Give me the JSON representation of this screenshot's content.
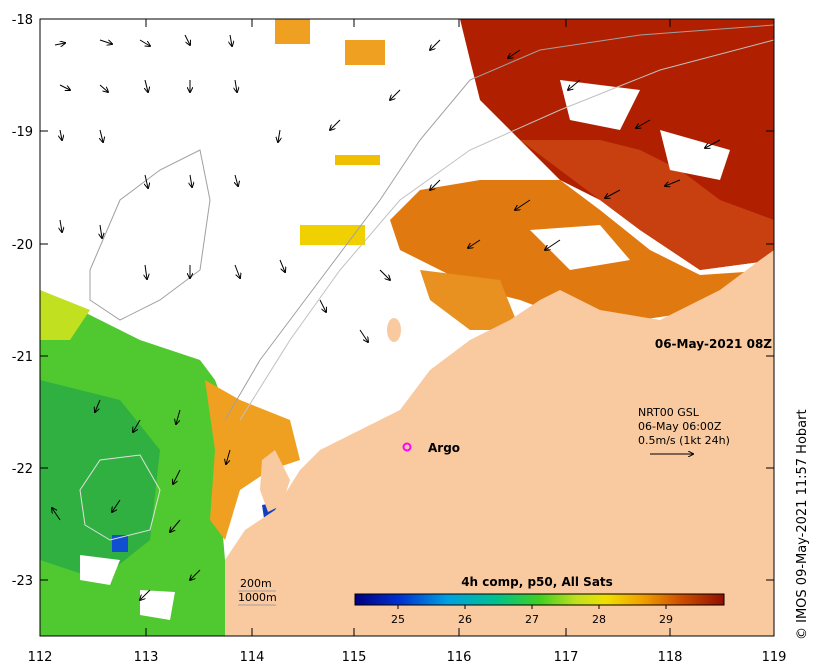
{
  "map": {
    "lon_ticks": [
      "112",
      "113",
      "114",
      "115",
      "116",
      "117",
      "118",
      "119"
    ],
    "lat_ticks": [
      "-18",
      "-19",
      "-20",
      "-21",
      "-22",
      "-23"
    ],
    "timestamp": "06-May-2021 08Z",
    "current_legend": {
      "line1": "NRT00 GSL",
      "line2": "06-May 06:00Z",
      "line3": "0.5m/s (1kt 24h)"
    },
    "argo_label": "Argo",
    "isobaths": {
      "a": "200m",
      "b": "1000m"
    },
    "colorbar": {
      "title": "4h comp, p50, All Sats",
      "ticks": [
        "25",
        "26",
        "27",
        "28",
        "29"
      ]
    },
    "credit": "© IMOS 09-May-2021 11:57 Hobart",
    "colors": {
      "land": "#f9c9a0",
      "warm": "#b02000",
      "mid": "#e07a10",
      "cool": "#3fc030",
      "cold": "#1040c0",
      "argo": "#ff00ff"
    }
  }
}
